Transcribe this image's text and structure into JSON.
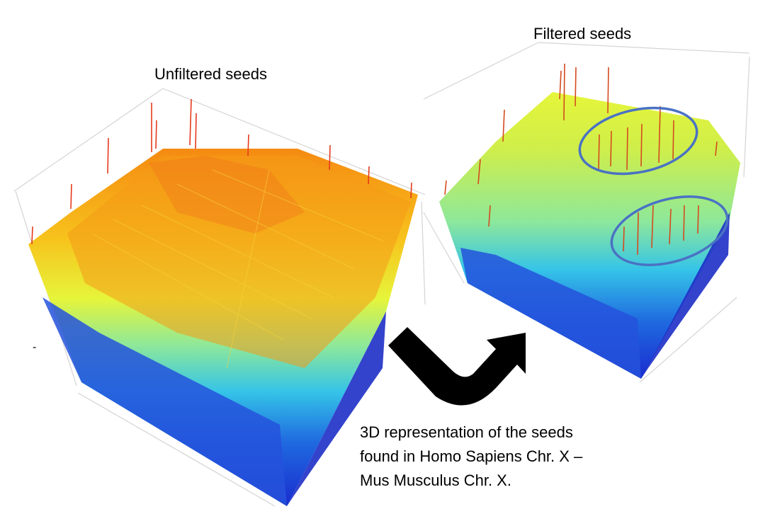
{
  "titles": {
    "unfiltered": "Unfiltered seeds",
    "filtered": "Filtered seeds"
  },
  "caption": {
    "line1": "3D representation of the seeds",
    "line2": "found in Homo Sapiens Chr. X –",
    "line3": "Mus Musculus Chr. X."
  },
  "stray_mark": "-",
  "colors": {
    "highlight_ellipse": "#4a72c4",
    "arrow": "#000000",
    "colormap": [
      "#1a2ccf",
      "#1f6ae0",
      "#35c4e8",
      "#8ee89a",
      "#e6f53a",
      "#f7c21c",
      "#f58a12",
      "#e2381c"
    ]
  },
  "icons": {
    "transition_arrow": "curved-arrow-icon"
  }
}
